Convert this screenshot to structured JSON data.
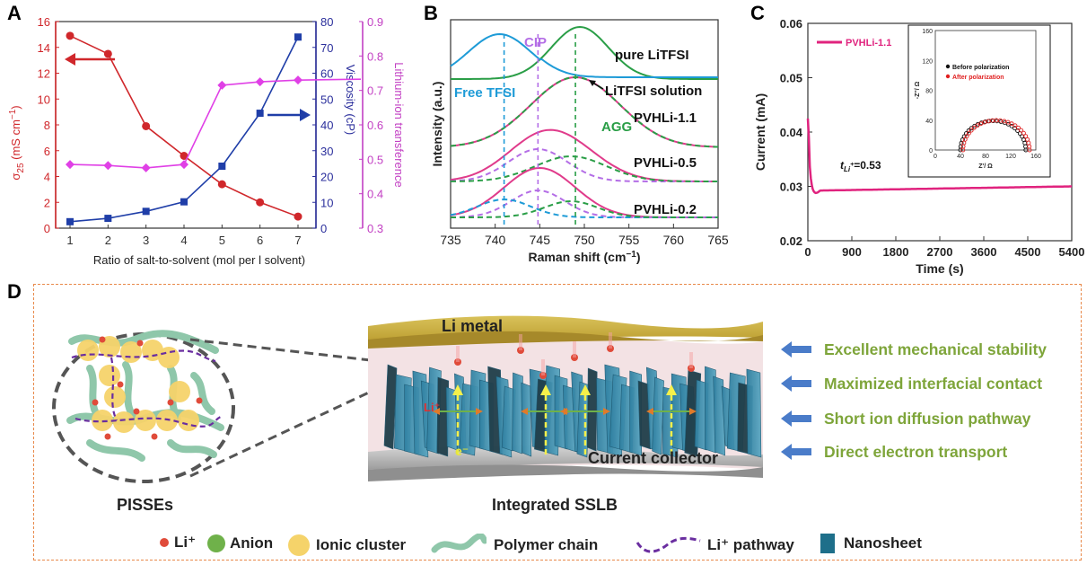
{
  "panels": {
    "A": {
      "letter": "A"
    },
    "B": {
      "letter": "B"
    },
    "C": {
      "letter": "C"
    },
    "D": {
      "letter": "D"
    }
  },
  "chart_data": [
    {
      "id": "A",
      "type": "line",
      "xlabel": "Ratio of salt-to-solvent (mol per l solvent)",
      "x": [
        1,
        2,
        3,
        4,
        5,
        6,
        7
      ],
      "xticks": [
        "1",
        "2",
        "3",
        "4",
        "5",
        "6",
        "7"
      ],
      "axes": {
        "left": {
          "label": "σ25 (mS cm⁻¹)",
          "label_main": "σ",
          "label_sub": "25",
          "label_rest": " (mS cm",
          "label_sup": "−1",
          "label_end": ")",
          "ylim": [
            0,
            16
          ],
          "ticks": [
            "0",
            "2",
            "4",
            "6",
            "8",
            "10",
            "12",
            "14",
            "16"
          ],
          "color": "#d0272b"
        },
        "right1": {
          "label": "Viscosity (cP)",
          "ylim": [
            0,
            80
          ],
          "ticks": [
            "0",
            "10",
            "20",
            "30",
            "40",
            "50",
            "60",
            "70",
            "80"
          ],
          "color": "#2b2f9c"
        },
        "right2": {
          "label": "Lithium-ion transference",
          "ylim": [
            0.3,
            0.9
          ],
          "ticks": [
            "0.3",
            "0.4",
            "0.5",
            "0.6",
            "0.7",
            "0.8",
            "0.9"
          ],
          "color": "#c23fc3"
        }
      },
      "series": [
        {
          "axis": "left",
          "color": "#d0272b",
          "marker": "circle",
          "values": [
            14.9,
            13.5,
            7.9,
            5.6,
            3.4,
            2.0,
            0.9
          ]
        },
        {
          "axis": "right1",
          "color": "#1f3ea8",
          "marker": "square",
          "values": [
            2.5,
            3.8,
            6.5,
            10.2,
            24.0,
            44.5,
            74.0
          ]
        },
        {
          "axis": "right2",
          "color": "#e040e6",
          "marker": "diamond",
          "values": [
            0.485,
            0.482,
            0.475,
            0.485,
            0.715,
            0.725,
            0.73
          ]
        }
      ]
    },
    {
      "id": "B",
      "type": "line",
      "xlabel": "Raman shift (cm⁻¹)",
      "xlabel_main": "Raman shift (cm",
      "xlabel_sup": "−1",
      "xlabel_end": ")",
      "ylabel": "Intensity (a.u.)",
      "xlim": [
        735,
        765
      ],
      "xticks": [
        "735",
        "740",
        "745",
        "750",
        "755",
        "760",
        "765"
      ],
      "annotations": {
        "cip": "CIP",
        "free": "Free TFSI",
        "agg": "AGG",
        "pure": "pure LiTFSI",
        "solution": "LiTFSI solution",
        "s11": "PVHLi-1.1",
        "s05": "PVHLi-0.5",
        "s02": "PVHLi-0.2"
      },
      "reference_lines": [
        741,
        744.8,
        749
      ],
      "colors": {
        "free": "#1e9bd7",
        "cip": "#b46ee6",
        "agg": "#2a9e47",
        "sample": "#e03b8b"
      }
    },
    {
      "id": "C",
      "type": "line",
      "xlabel": "Time (s)",
      "ylabel": "Current (mA)",
      "xlim": [
        0,
        5400
      ],
      "ylim": [
        0.02,
        0.06
      ],
      "xticks": [
        "0",
        "900",
        "1800",
        "2700",
        "3600",
        "4500",
        "5400"
      ],
      "yticks": [
        "0.02",
        "0.03",
        "0.04",
        "0.05",
        "0.06"
      ],
      "legend": "PVHLi-1.1",
      "series_color": "#e0237e",
      "annotation_main": "t",
      "annotation_sub": "Li",
      "annotation_sup": "+",
      "annotation_val": "=0.53",
      "inset": {
        "xlabel": "Z'/ Ω",
        "ylabel": "-Z''/ Ω",
        "xlim": [
          0,
          160
        ],
        "ylim": [
          0,
          160
        ],
        "xticks": [
          "0",
          "40",
          "80",
          "120",
          "160"
        ],
        "yticks": [
          "0",
          "40",
          "80",
          "120",
          "160"
        ],
        "legend": [
          {
            "name": "Before polarization",
            "color": "#111111"
          },
          {
            "name": "After polarization",
            "color": "#e02020"
          }
        ]
      }
    }
  ],
  "schematic": {
    "li_metal": "Li metal",
    "current_collector": "Current collector",
    "li_plus": "Li⁺",
    "e_minus": "e⁻",
    "left_caption": "PISSEs",
    "center_caption": "Integrated SSLB",
    "bullets": [
      "Excellent mechanical stability",
      "Maximized interfacial contact",
      "Short ion diffusion pathway",
      "Direct electron transport"
    ],
    "legend": [
      {
        "label": "Li⁺",
        "color": "#e04b3a"
      },
      {
        "label": "Anion",
        "color": "#6fb14a"
      },
      {
        "label": "Ionic cluster",
        "color": "#f5d36a"
      },
      {
        "label": "Polymer chain",
        "color": "#8fc7aa"
      },
      {
        "label": "Li⁺ pathway",
        "color": "#6a2ea0"
      },
      {
        "label": "Nanosheet",
        "color": "#1e6f8a"
      }
    ],
    "arrow_color": "#4a7cc9"
  }
}
